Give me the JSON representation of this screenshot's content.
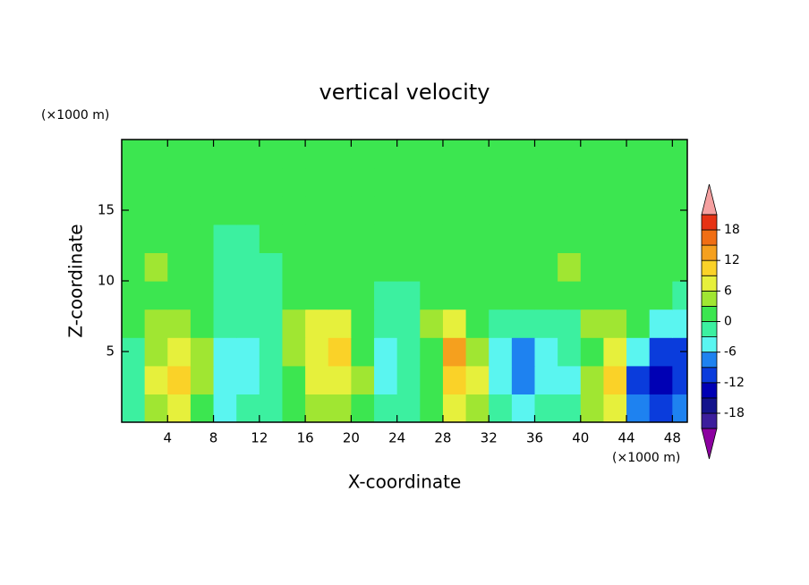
{
  "chart_data": {
    "type": "contour",
    "title": "vertical velocity",
    "x_label": "X-coordinate",
    "y_label": "Z-coordinate",
    "x_unit": "(×1000 m)",
    "y_unit": "(×1000 m)",
    "xlim": [
      0,
      49.3
    ],
    "ylim": [
      0,
      20
    ],
    "xticks": [
      4,
      8,
      12,
      16,
      20,
      24,
      28,
      32,
      36,
      40,
      44,
      48
    ],
    "yticks": [
      5,
      10,
      15
    ],
    "x": [
      1,
      3,
      5,
      7,
      9,
      11,
      13,
      15,
      17,
      19,
      21,
      23,
      25,
      27,
      29,
      31,
      33,
      35,
      37,
      39,
      41,
      43,
      45,
      47,
      49
    ],
    "y": [
      1,
      3,
      5,
      7,
      9,
      11,
      13,
      15,
      17,
      19
    ],
    "z": [
      [
        -2,
        4,
        7,
        2,
        -4,
        -3,
        -3,
        0,
        5,
        4,
        2,
        -2,
        -1,
        0,
        6,
        4,
        -3,
        -4,
        -3,
        -2,
        3,
        6,
        -8,
        -12,
        -9
      ],
      [
        -2,
        6,
        9,
        3,
        -5,
        -4,
        -3,
        2,
        7,
        7,
        4,
        -4,
        -2,
        2,
        11,
        6,
        -4,
        -7,
        -4,
        -6,
        4,
        9,
        -10,
        -15,
        -12
      ],
      [
        -1,
        5,
        8,
        3,
        -6,
        -4,
        -2,
        3,
        7,
        9,
        2,
        -4,
        -3,
        2,
        13,
        5,
        -4,
        -8,
        -4,
        -3,
        2,
        7,
        -4,
        -12,
        -11
      ],
      [
        0,
        3,
        4,
        1,
        -3,
        -3,
        -1,
        3,
        6,
        6,
        0,
        -3,
        -3,
        3,
        7,
        2,
        -2,
        -3,
        -3,
        -2,
        3,
        4,
        1,
        -5,
        -6
      ],
      [
        1,
        1,
        1,
        0,
        -2,
        -3,
        -1,
        1,
        2,
        2,
        1,
        -1,
        -1,
        1,
        2,
        2,
        1,
        1,
        0,
        0,
        1,
        1,
        1,
        1,
        -2
      ],
      [
        1,
        3,
        1,
        0,
        -1,
        -2,
        -1,
        1,
        1,
        1,
        1,
        0,
        0,
        1,
        1,
        1,
        1,
        1,
        1,
        3,
        2,
        1,
        1,
        1,
        1
      ],
      [
        1,
        2,
        1,
        0,
        -1,
        -1,
        0,
        1,
        1,
        1,
        1,
        1,
        0,
        1,
        1,
        1,
        1,
        1,
        2,
        2,
        1,
        1,
        1,
        1,
        1
      ],
      [
        0,
        1,
        0,
        0,
        0,
        0,
        1,
        0,
        0,
        1,
        0,
        0,
        1,
        0,
        0,
        1,
        1,
        0,
        0,
        1,
        1,
        0,
        0,
        1,
        0
      ],
      [
        0,
        0,
        0,
        1,
        1,
        1,
        0,
        0,
        0,
        0,
        0,
        0,
        1,
        1,
        0,
        0,
        0,
        0,
        0,
        1,
        1,
        1,
        1,
        1,
        0
      ],
      [
        1,
        0,
        0,
        0,
        0,
        0,
        1,
        1,
        0,
        1,
        1,
        0,
        0,
        1,
        1,
        0,
        0,
        0,
        0,
        1,
        1,
        1,
        1,
        0,
        0
      ]
    ],
    "levels": [
      -21,
      -18,
      -15,
      -12,
      -9,
      -6,
      -3,
      0,
      3,
      6,
      9,
      12,
      15,
      18,
      21
    ],
    "colors": [
      "#8c00a0",
      "#3c1e9c",
      "#14148c",
      "#0000b4",
      "#0a3cdc",
      "#1e82f0",
      "#5af5f0",
      "#3cf0a0",
      "#3ce650",
      "#a0e632",
      "#e6f03c",
      "#fad228",
      "#f5a01e",
      "#f06e14",
      "#e63214",
      "#f5a0a0"
    ],
    "colorbar_ticks": [
      -18,
      -12,
      -6,
      0,
      6,
      12,
      18
    ]
  }
}
